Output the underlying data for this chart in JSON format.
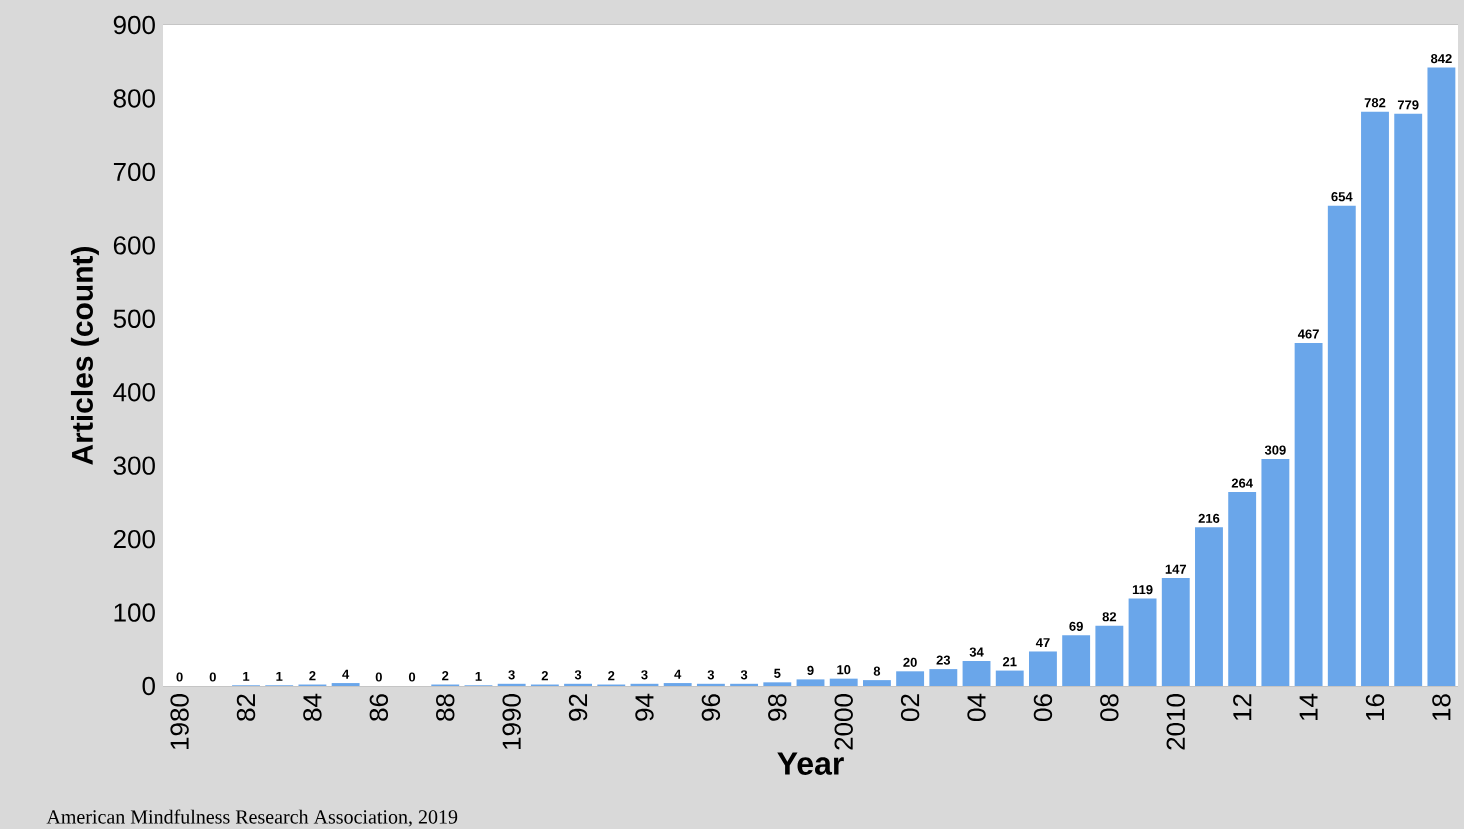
{
  "chart_data": {
    "type": "bar",
    "xlabel": "Year",
    "ylabel": "Articles (count)",
    "categories": [
      "1980",
      null,
      "82",
      null,
      "84",
      null,
      "86",
      null,
      "88",
      null,
      "1990",
      null,
      "92",
      null,
      "94",
      null,
      "96",
      null,
      "98",
      null,
      "2000",
      null,
      "02",
      null,
      "04",
      null,
      "06",
      null,
      "08",
      null,
      "2010",
      null,
      "12",
      null,
      "14",
      null,
      "16",
      null,
      "18"
    ],
    "values": [
      0,
      0,
      1,
      1,
      2,
      4,
      0,
      0,
      2,
      1,
      3,
      2,
      3,
      2,
      3,
      4,
      3,
      3,
      5,
      9,
      10,
      8,
      20,
      23,
      34,
      21,
      47,
      69,
      82,
      119,
      147,
      216,
      264,
      309,
      467,
      654,
      782,
      779,
      842
    ],
    "color": "#6aa6ea",
    "ylim": [
      0,
      900
    ],
    "yticks": [
      0,
      100,
      200,
      300,
      400,
      500,
      600,
      700,
      800,
      900
    ],
    "grid": "y",
    "data_labels": true,
    "annotations": [
      "American Mindfulness Research Association, 2019"
    ]
  }
}
